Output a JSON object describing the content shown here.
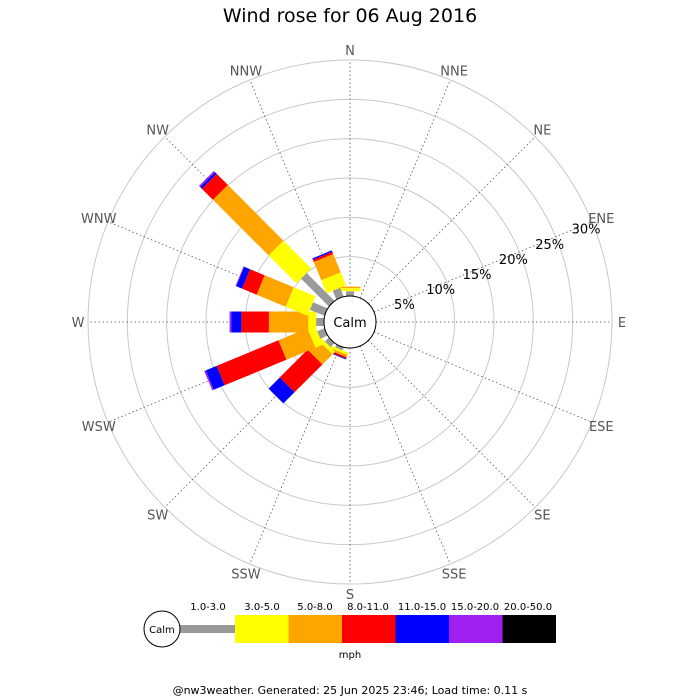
{
  "chart_data": {
    "type": "wind-rose",
    "title": "Wind rose for 06 Aug 2016",
    "directions": [
      "N",
      "NNE",
      "NE",
      "ENE",
      "E",
      "ESE",
      "SE",
      "SSE",
      "S",
      "SSW",
      "SW",
      "WSW",
      "W",
      "WNW",
      "NW",
      "NNW"
    ],
    "radial_ticks": [
      "5%",
      "10%",
      "15%",
      "20%",
      "25%",
      "30%"
    ],
    "radial_max_percent": 30,
    "calm_label": "Calm",
    "speed_bins": [
      {
        "label": "1.0-3.0",
        "color": "#999999"
      },
      {
        "label": "3.0-5.0",
        "color": "#ffff00"
      },
      {
        "label": "5.0-8.0",
        "color": "#ffa500"
      },
      {
        "label": "8.0-11.0",
        "color": "#ff0000"
      },
      {
        "label": "11.0-15.0",
        "color": "#0000ff"
      },
      {
        "label": "15.0-20.0",
        "color": "#a020f0"
      },
      {
        "label": "20.0-50.0",
        "color": "#000000"
      }
    ],
    "units": "mph",
    "series_cumulative_percent": {
      "N": [
        0.6,
        1.0,
        1.2,
        0,
        0,
        0,
        0
      ],
      "SSW": [
        0.4,
        0.7,
        1.0,
        1.2,
        1.3,
        0,
        0
      ],
      "SW": [
        0.7,
        1.2,
        3.0,
        8.0,
        10.0,
        0,
        0
      ],
      "WSW": [
        1.0,
        2.0,
        6.0,
        14.5,
        16.0,
        16.2,
        0
      ],
      "W": [
        1.0,
        2.0,
        7.0,
        10.5,
        11.8,
        12.0,
        0
      ],
      "WNW": [
        2.0,
        5.0,
        9.0,
        11.0,
        11.8,
        11.9,
        0
      ],
      "NW": [
        5.0,
        10.0,
        20.0,
        22.0,
        22.3,
        22.5,
        0
      ],
      "NNW": [
        1.2,
        3.0,
        5.5,
        5.8,
        6.0,
        6.0,
        0
      ]
    }
  },
  "legend": {
    "calm_label": "Calm",
    "units_label": "mph"
  },
  "footer": "@nw3weather. Generated: 25 Jun 2025 23:46; Load time: 0.11 s"
}
